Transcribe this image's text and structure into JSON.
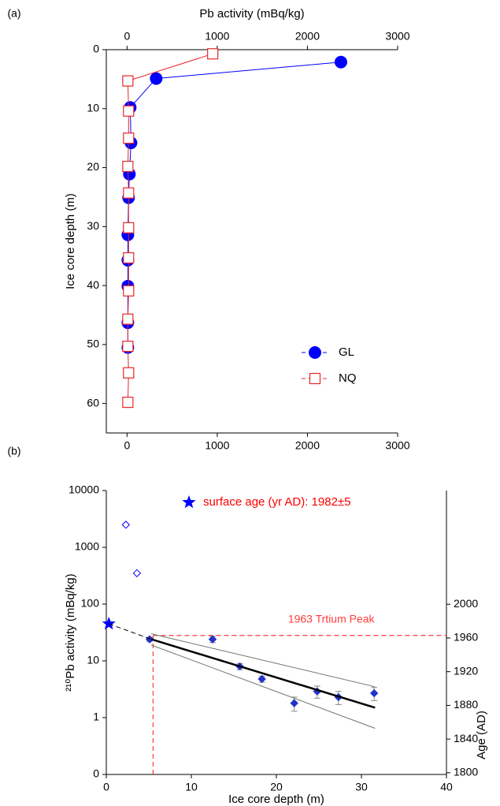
{
  "chart_data": [
    {
      "type": "scatter",
      "panel_label": "(a)",
      "xlabel": "Pb activity (mBq/kg)",
      "xlabel_position": "top",
      "ylabel": "Ice core depth (m)",
      "xlim": [
        -230,
        3000
      ],
      "xticks": [
        0,
        1000,
        2000,
        3000
      ],
      "xticks_top": true,
      "ylim": [
        65,
        0
      ],
      "yticks": [
        0,
        10,
        20,
        30,
        40,
        50,
        60
      ],
      "legend": "lower right",
      "series": [
        {
          "name": "GL",
          "color": "#0000ff",
          "marker": "circle",
          "line": "solid",
          "x": [
            2371,
            323,
            35,
            44,
            26,
            17,
            9,
            9,
            9,
            9,
            9
          ],
          "values": [
            2.1,
            4.9,
            9.8,
            15.8,
            21.1,
            25.1,
            31.4,
            35.7,
            40.1,
            46.3,
            50.5
          ]
        },
        {
          "name": "NQ",
          "color": "#e8262a",
          "marker": "square-open",
          "line": "solid",
          "x": [
            950,
            9,
            17,
            17,
            9,
            17,
            17,
            17,
            17,
            9,
            9,
            17,
            9
          ],
          "values": [
            0.7,
            5.3,
            10.4,
            15,
            19.8,
            24.3,
            30.2,
            35.3,
            40.9,
            45.7,
            50.3,
            54.8,
            59.8
          ]
        }
      ]
    },
    {
      "type": "scatter",
      "panel_label": "(b)",
      "xlabel": "Ice core depth (m)",
      "xlabel_position": "bottom",
      "ylabel": "²¹⁰Pb activity (mBq/kg)",
      "y2label": "Age (AD)",
      "xlim": [
        0,
        40
      ],
      "xticks": [
        0,
        10,
        20,
        30,
        40
      ],
      "ylim": [
        0.1,
        10000
      ],
      "yscale": "log",
      "yticks": [
        {
          "value": 0.1,
          "label": "0"
        },
        1,
        10,
        100,
        1000,
        10000
      ],
      "y2lim": [
        1798,
        2135
      ],
      "y2ticks": [
        1800,
        1840,
        1880,
        1920,
        1960,
        2000
      ],
      "legend": "upper right",
      "legend_text_color": "#ff0000",
      "reference": {
        "x": 5.5,
        "y2": 1963,
        "label": "1963 Trtium Peak",
        "color": "#ff3b3b"
      },
      "series": [
        {
          "name": "surface age (yr AD): 1982±5",
          "color": "#0000ff",
          "marker": "star",
          "x": [
            0.3
          ],
          "values": [
            45
          ]
        },
        {
          "color": "#0000ff",
          "marker": "diamond-open",
          "x": [
            2.3,
            3.6
          ],
          "values": [
            2500,
            350
          ]
        },
        {
          "color": "#2233cc",
          "marker": "diamond",
          "x": [
            5.1,
            12.5,
            15.7,
            18.3,
            22.1,
            24.8,
            27.3,
            31.5
          ],
          "values": [
            24,
            24,
            8,
            4.8,
            1.8,
            2.9,
            2.3,
            2.7
          ],
          "errors": [
            2,
            3,
            1,
            0.6,
            0.5,
            0.7,
            0.6,
            0.7
          ]
        },
        {
          "color": "#000000",
          "line": "solid",
          "line_width": 2.5,
          "x": [
            5.3,
            31.6
          ],
          "values": [
            24,
            1.5
          ]
        },
        {
          "color": "#6a7a6a",
          "line": "solid",
          "line_width": 1,
          "x": [
            5.3,
            31.6
          ],
          "values": [
            30,
            3.5
          ]
        },
        {
          "color": "#6a7a6a",
          "line": "solid",
          "line_width": 1,
          "x": [
            5.3,
            31.6
          ],
          "values": [
            19,
            0.65
          ]
        },
        {
          "color": "#000000",
          "line": "dashed",
          "line_width": 1,
          "x": [
            0.3,
            5.3
          ],
          "values": [
            45,
            24
          ]
        }
      ]
    }
  ]
}
